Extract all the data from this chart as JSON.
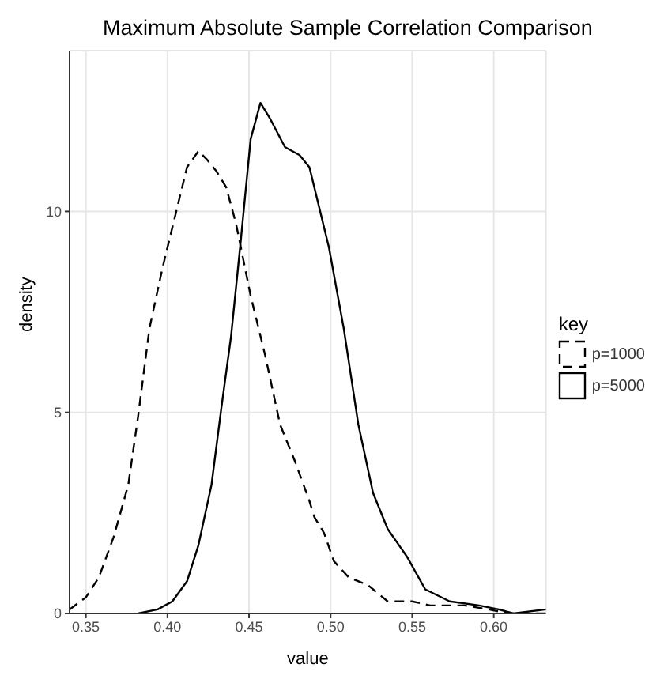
{
  "chart_data": {
    "type": "line",
    "title": "Maximum Absolute Sample Correlation Comparison",
    "xlabel": "value",
    "ylabel": "density",
    "legend_title": "key",
    "legend": "right",
    "grid": true,
    "marker": "none",
    "xlim": [
      0.34,
      0.632
    ],
    "xticks": [
      {
        "value": 0.35,
        "label": "0.35"
      },
      {
        "value": 0.4,
        "label": "0.40"
      },
      {
        "value": 0.45,
        "label": "0.45"
      },
      {
        "value": 0.5,
        "label": "0.50"
      },
      {
        "value": 0.55,
        "label": "0.55"
      },
      {
        "value": 0.6,
        "label": "0.60"
      }
    ],
    "ylim": [
      0,
      14
    ],
    "yticks": [
      0,
      5,
      10
    ],
    "series": [
      {
        "name": "p=1000",
        "color": "#000000",
        "line_style": "dashed",
        "x": [
          0.34,
          0.35,
          0.358,
          0.367,
          0.376,
          0.382,
          0.389,
          0.397,
          0.406,
          0.412,
          0.419,
          0.424,
          0.43,
          0.436,
          0.442,
          0.451,
          0.46,
          0.469,
          0.478,
          0.487,
          0.49,
          0.496,
          0.502,
          0.511,
          0.523,
          0.535,
          0.55,
          0.561,
          0.582,
          0.597,
          0.609,
          0.632
        ],
        "values": [
          0.1,
          0.4,
          0.9,
          1.9,
          3.2,
          4.9,
          7.1,
          8.6,
          10.1,
          11.1,
          11.5,
          11.3,
          11.0,
          10.6,
          9.7,
          7.9,
          6.4,
          4.7,
          3.8,
          2.8,
          2.4,
          2.0,
          1.3,
          0.9,
          0.7,
          0.3,
          0.3,
          0.2,
          0.2,
          0.1,
          0.0,
          0.0
        ]
      },
      {
        "name": "p=5000",
        "color": "#000000",
        "line_style": "solid",
        "x": [
          0.382,
          0.394,
          0.403,
          0.412,
          0.419,
          0.427,
          0.433,
          0.439,
          0.445,
          0.451,
          0.457,
          0.463,
          0.472,
          0.481,
          0.487,
          0.499,
          0.508,
          0.517,
          0.526,
          0.535,
          0.547,
          0.558,
          0.573,
          0.591,
          0.603,
          0.612,
          0.632
        ],
        "values": [
          0.0,
          0.1,
          0.3,
          0.8,
          1.7,
          3.2,
          5.1,
          6.9,
          9.3,
          11.8,
          12.7,
          12.3,
          11.6,
          11.4,
          11.1,
          9.1,
          7.1,
          4.7,
          3.0,
          2.1,
          1.4,
          0.6,
          0.3,
          0.2,
          0.1,
          0.0,
          0.1
        ]
      }
    ]
  }
}
